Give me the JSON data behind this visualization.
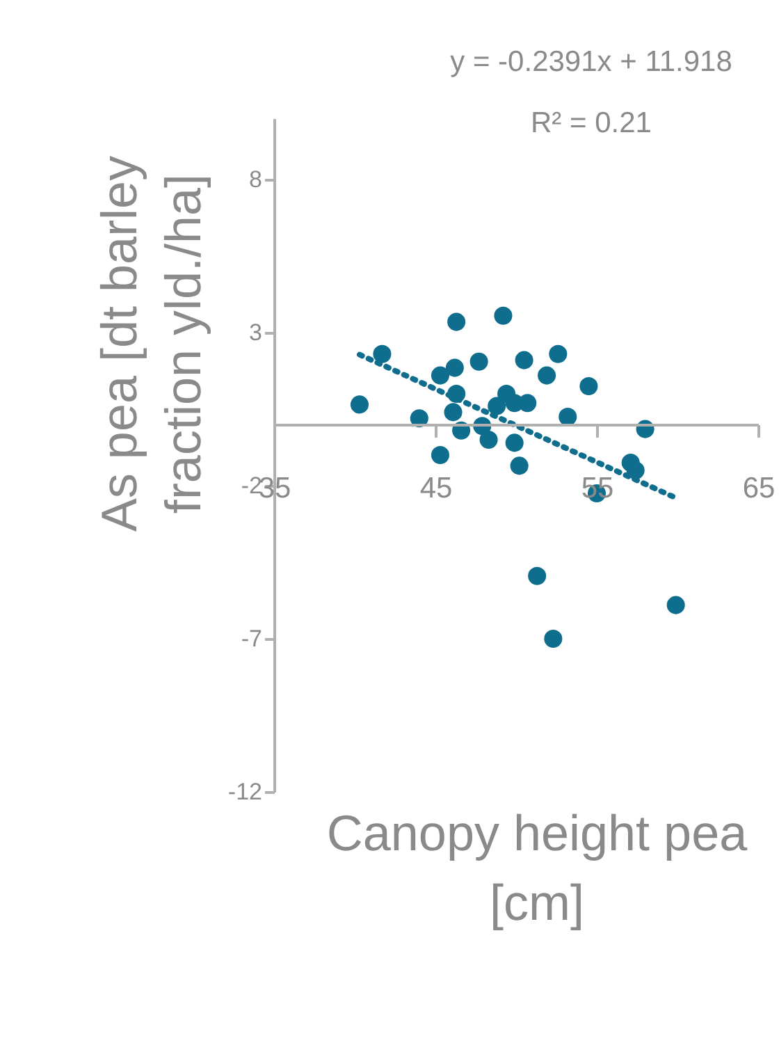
{
  "chart_data": {
    "type": "scatter",
    "xlabel": "Canopy height pea [cm]",
    "ylabel": "As pea [dt barley fraction yld./ha]",
    "annotations": [
      "y = -0.2391x + 11.918",
      "R² = 0.21"
    ],
    "xlim": [
      35,
      65
    ],
    "xticks": [
      35,
      45,
      55,
      65
    ],
    "ylim": [
      -12,
      10
    ],
    "yticks": [
      -12,
      -7,
      -2,
      3,
      8
    ],
    "grid": false,
    "marker": "circle",
    "series": [
      {
        "color": "#0f6e8e",
        "x": [
          40.3,
          41.7,
          44.0,
          45.3,
          45.3,
          46.2,
          46.3,
          46.3,
          46.1,
          46.6,
          47.7,
          47.9,
          48.3,
          48.8,
          49.4,
          49.2,
          49.9,
          50.7,
          49.9,
          50.2,
          50.5,
          51.9,
          52.6,
          53.2,
          54.5,
          55.0,
          57.1,
          57.4,
          58.0,
          51.3,
          52.3,
          59.9
        ],
        "values": [
          0.65,
          2.3,
          0.2,
          -1.0,
          1.6,
          1.85,
          3.35,
          1.0,
          0.4,
          -0.2,
          2.05,
          -0.05,
          -0.5,
          0.6,
          1.0,
          3.55,
          0.7,
          0.7,
          -0.6,
          -1.35,
          2.1,
          1.6,
          2.3,
          0.25,
          1.25,
          -2.25,
          -1.25,
          -1.5,
          -0.15,
          -4.95,
          -7.0,
          -5.9
        ]
      },
      {
        "type": "line",
        "marker": "none",
        "line_style": "dotted",
        "color": "#0f6e8e",
        "x": [
          40.3,
          59.9
        ],
        "values": [
          2.28,
          -2.4
        ]
      }
    ]
  }
}
